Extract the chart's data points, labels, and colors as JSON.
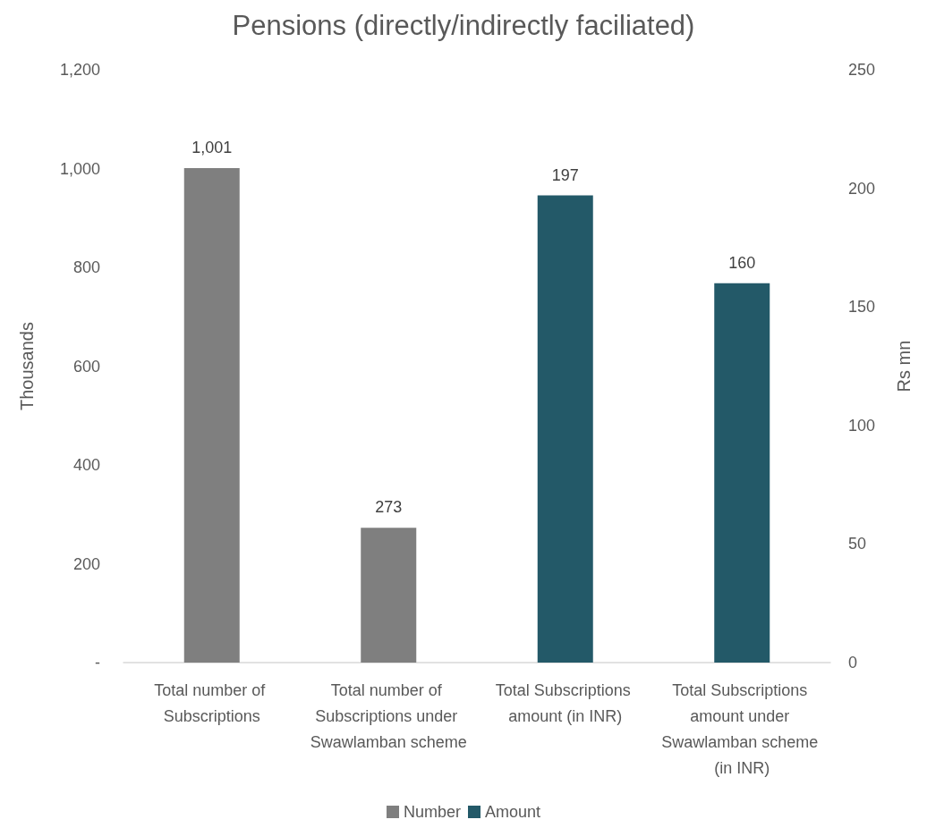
{
  "chart_data": {
    "type": "bar",
    "title": "Pensions (directly/indirectly faciliated)",
    "categories": [
      "Total number of Subscriptions",
      "Total number of Subscriptions under Swawlamban scheme",
      "Total Subscriptions amount (in INR)",
      "Total Subscriptions amount under Swawlamban scheme (in INR)"
    ],
    "series": [
      {
        "name": "Number",
        "color": "#7f7f7f",
        "values": [
          1001,
          273,
          null,
          null
        ],
        "value_labels": [
          "1,001",
          "273",
          null,
          null
        ]
      },
      {
        "name": "Amount",
        "color": "#235968",
        "axis": "y2",
        "values": [
          null,
          null,
          197,
          160
        ],
        "value_labels": [
          null,
          null,
          "197",
          "160"
        ]
      }
    ],
    "ylabel": "Thousands",
    "y2label": "Rs mn",
    "ylim": [
      0,
      1200
    ],
    "yticks": [
      {
        "value": 0,
        "label": "-"
      },
      200,
      400,
      600,
      800,
      {
        "value": 1000,
        "label": "1,000"
      },
      {
        "value": 1200,
        "label": "1,200"
      }
    ],
    "y2lim": [
      0,
      250
    ],
    "y2ticks": [
      0,
      50,
      100,
      150,
      200,
      250
    ],
    "legend": "bottom"
  }
}
